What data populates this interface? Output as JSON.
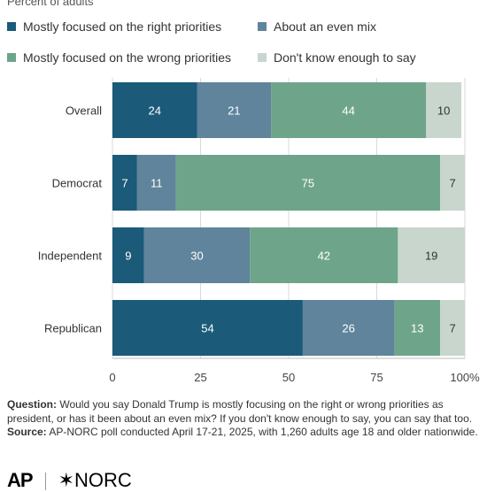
{
  "subtitle": "Percent of adults",
  "legend": [
    {
      "label": "Mostly focused on the right priorities",
      "color": "#1b5a79"
    },
    {
      "label": "About an even mix",
      "color": "#5f849b"
    },
    {
      "label": "Mostly focused on the wrong priorities",
      "color": "#6ea58a"
    },
    {
      "label": "Don't know enough to say",
      "color": "#c8d6ce"
    }
  ],
  "chart_data": {
    "type": "bar",
    "orientation": "horizontal",
    "stacked": true,
    "categories": [
      "Overall",
      "Democrat",
      "Independent",
      "Republican"
    ],
    "series": [
      {
        "name": "Mostly focused on the right priorities",
        "values": [
          24,
          7,
          9,
          54
        ],
        "color": "#1b5a79"
      },
      {
        "name": "About an even mix",
        "values": [
          21,
          11,
          30,
          26
        ],
        "color": "#5f849b"
      },
      {
        "name": "Mostly focused on the wrong priorities",
        "values": [
          44,
          75,
          42,
          13
        ],
        "color": "#6ea58a"
      },
      {
        "name": "Don't know enough to say",
        "values": [
          10,
          7,
          19,
          7
        ],
        "color": "#c8d6ce"
      }
    ],
    "xlim": [
      0,
      100
    ],
    "xticks": [
      "0",
      "25",
      "50",
      "75",
      "100%"
    ],
    "grid": true,
    "legend_position": "top"
  },
  "footer": {
    "question_label": "Question:",
    "question_text": "Would you say Donald Trump is mostly focusing on the right or wrong priorities as president, or has it been about an even mix? If you don't know enough to say, you can say that too.",
    "source_label": "Source:",
    "source_text": "AP-NORC poll conducted April 17-21, 2025, with 1,260 adults age 18 and older nationwide."
  },
  "logos": {
    "ap": "AP",
    "norc": "✶NORC"
  }
}
